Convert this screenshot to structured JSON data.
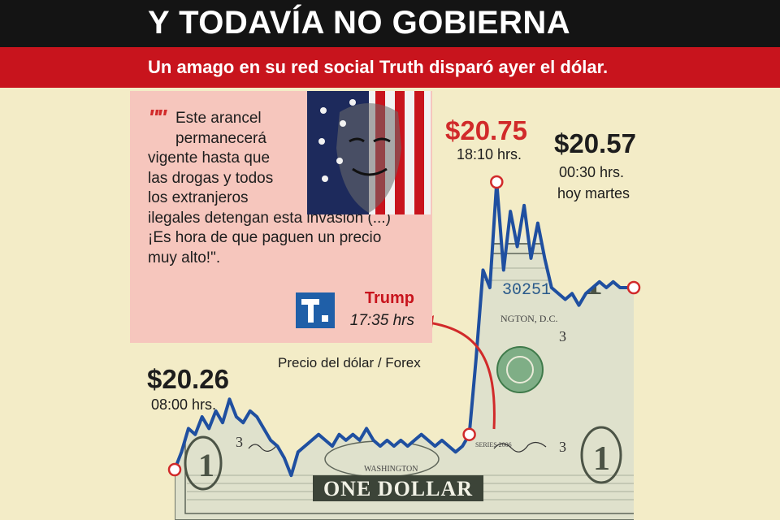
{
  "header": {
    "title": "Y TODAVÍA NO GOBIERNA",
    "subtitle": "Un amago en su red social Truth disparó ayer el dólar."
  },
  "quote": {
    "mark": "\"\"",
    "lines": [
      "Este arancel",
      "permanecerá",
      "vigente hasta que",
      "las drogas y todos",
      "los extranjeros",
      "ilegales detengan esta invasión (...)",
      "¡Es hora de que paguen un precio",
      "muy alto!\"."
    ],
    "author": "Trump",
    "time": "17:35 hrs"
  },
  "chart_data": {
    "type": "line",
    "title": "Precio del dólar / Forex",
    "series": [
      {
        "values": [
          20.26,
          20.29,
          20.33,
          20.32,
          20.35,
          20.33,
          20.36,
          20.34,
          20.38,
          20.35,
          20.34,
          20.36,
          20.35,
          20.33,
          20.31,
          20.3,
          20.28,
          20.25,
          20.29,
          20.3,
          20.31,
          20.32,
          20.31,
          20.3,
          20.32,
          20.31,
          20.32,
          20.31,
          20.33,
          20.31,
          20.3,
          20.31,
          20.3,
          20.31,
          20.3,
          20.31,
          20.32,
          20.31,
          20.3,
          20.31,
          20.3,
          20.29,
          20.3,
          20.32,
          20.45,
          20.6,
          20.57,
          20.75,
          20.6,
          20.7,
          20.64,
          20.71,
          20.62,
          20.68,
          20.62,
          20.57,
          20.56,
          20.55,
          20.56,
          20.54,
          20.56,
          20.57,
          20.58,
          20.57,
          20.58,
          20.57,
          20.57,
          20.57
        ]
      }
    ],
    "annotations": [
      {
        "label": "$20.26",
        "time": "08:00 hrs.",
        "value": 20.26
      },
      {
        "label": "$20.75",
        "time": "18:10 hrs.",
        "value": 20.75
      },
      {
        "label": "$20.57",
        "time": "00:30 hrs.",
        "time2": "hoy martes",
        "value": 20.57
      }
    ],
    "colors": {
      "line": "#1f4fa0",
      "marker": "#d12a2a",
      "arrow": "#d12a2a"
    }
  },
  "background": {
    "banknote_text": "ONE DOLLAR"
  },
  "colors": {
    "header_bg": "#141414",
    "subheader_bg": "#c8141d",
    "quote_bg": "#f6c6bd",
    "page_bg": "#f3ecc7"
  }
}
